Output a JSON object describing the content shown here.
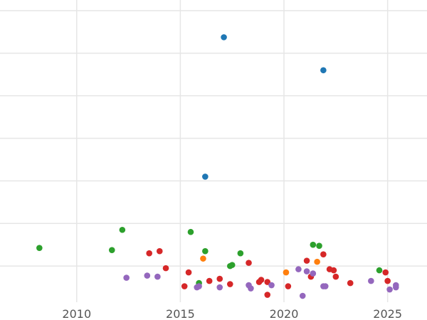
{
  "chart_data": {
    "type": "scatter",
    "xlim": [
      2006.3,
      2026.9
    ],
    "ylim": [
      -1.7,
      12.5
    ],
    "grid": true,
    "x_ticks": [
      2010,
      2015,
      2020,
      2025
    ],
    "x_tick_labels": [
      "2010",
      "2015",
      "2020",
      "2025"
    ],
    "y_gridlines": [
      0,
      2,
      4,
      6,
      8,
      10,
      12
    ],
    "y_tick_labels_visible": false,
    "series": [
      {
        "color": "#1f77b4",
        "points": [
          {
            "x": 2017.1,
            "y": 10.75
          },
          {
            "x": 2021.9,
            "y": 9.2
          },
          {
            "x": 2016.2,
            "y": 4.2
          }
        ]
      },
      {
        "color": "#2ca02c",
        "points": [
          {
            "x": 2008.2,
            "y": 0.85
          },
          {
            "x": 2011.7,
            "y": 0.75
          },
          {
            "x": 2012.2,
            "y": 1.7
          },
          {
            "x": 2015.5,
            "y": 1.6
          },
          {
            "x": 2016.2,
            "y": 0.7
          },
          {
            "x": 2015.9,
            "y": -0.8
          },
          {
            "x": 2017.4,
            "y": 0.0
          },
          {
            "x": 2017.5,
            "y": 0.05
          },
          {
            "x": 2017.9,
            "y": 0.6
          },
          {
            "x": 2021.4,
            "y": 1.0
          },
          {
            "x": 2021.7,
            "y": 0.95
          },
          {
            "x": 2024.6,
            "y": -0.2
          }
        ]
      },
      {
        "color": "#ff7f0e",
        "points": [
          {
            "x": 2016.1,
            "y": 0.35
          },
          {
            "x": 2020.1,
            "y": -0.3
          },
          {
            "x": 2021.6,
            "y": 0.2
          }
        ]
      },
      {
        "color": "#d62728",
        "points": [
          {
            "x": 2013.5,
            "y": 0.6
          },
          {
            "x": 2014.0,
            "y": 0.7
          },
          {
            "x": 2014.3,
            "y": -0.1
          },
          {
            "x": 2015.2,
            "y": -0.95
          },
          {
            "x": 2015.4,
            "y": -0.3
          },
          {
            "x": 2016.4,
            "y": -0.7
          },
          {
            "x": 2016.9,
            "y": -0.6
          },
          {
            "x": 2017.4,
            "y": -0.85
          },
          {
            "x": 2018.3,
            "y": 0.15
          },
          {
            "x": 2018.8,
            "y": -0.75
          },
          {
            "x": 2018.9,
            "y": -0.65
          },
          {
            "x": 2019.2,
            "y": -0.75
          },
          {
            "x": 2019.2,
            "y": -1.35
          },
          {
            "x": 2020.2,
            "y": -0.95
          },
          {
            "x": 2021.1,
            "y": 0.25
          },
          {
            "x": 2021.3,
            "y": -0.5
          },
          {
            "x": 2021.9,
            "y": 0.55
          },
          {
            "x": 2022.2,
            "y": -0.15
          },
          {
            "x": 2022.4,
            "y": -0.2
          },
          {
            "x": 2022.5,
            "y": -0.5
          },
          {
            "x": 2023.2,
            "y": -0.8
          },
          {
            "x": 2024.9,
            "y": -0.3
          },
          {
            "x": 2025.0,
            "y": -0.7
          }
        ]
      },
      {
        "color": "#9467bd",
        "points": [
          {
            "x": 2012.4,
            "y": -0.55
          },
          {
            "x": 2013.4,
            "y": -0.45
          },
          {
            "x": 2013.9,
            "y": -0.5
          },
          {
            "x": 2015.8,
            "y": -1.0
          },
          {
            "x": 2015.9,
            "y": -0.95
          },
          {
            "x": 2016.9,
            "y": -1.0
          },
          {
            "x": 2018.3,
            "y": -0.9
          },
          {
            "x": 2018.4,
            "y": -1.05
          },
          {
            "x": 2019.4,
            "y": -0.9
          },
          {
            "x": 2020.7,
            "y": -0.15
          },
          {
            "x": 2020.9,
            "y": -1.4
          },
          {
            "x": 2021.1,
            "y": -0.25
          },
          {
            "x": 2021.4,
            "y": -0.35
          },
          {
            "x": 2021.9,
            "y": -0.95
          },
          {
            "x": 2022.0,
            "y": -0.95
          },
          {
            "x": 2024.2,
            "y": -0.7
          },
          {
            "x": 2025.1,
            "y": -1.1
          },
          {
            "x": 2025.4,
            "y": -0.9
          },
          {
            "x": 2025.4,
            "y": -1.0
          }
        ]
      }
    ]
  }
}
